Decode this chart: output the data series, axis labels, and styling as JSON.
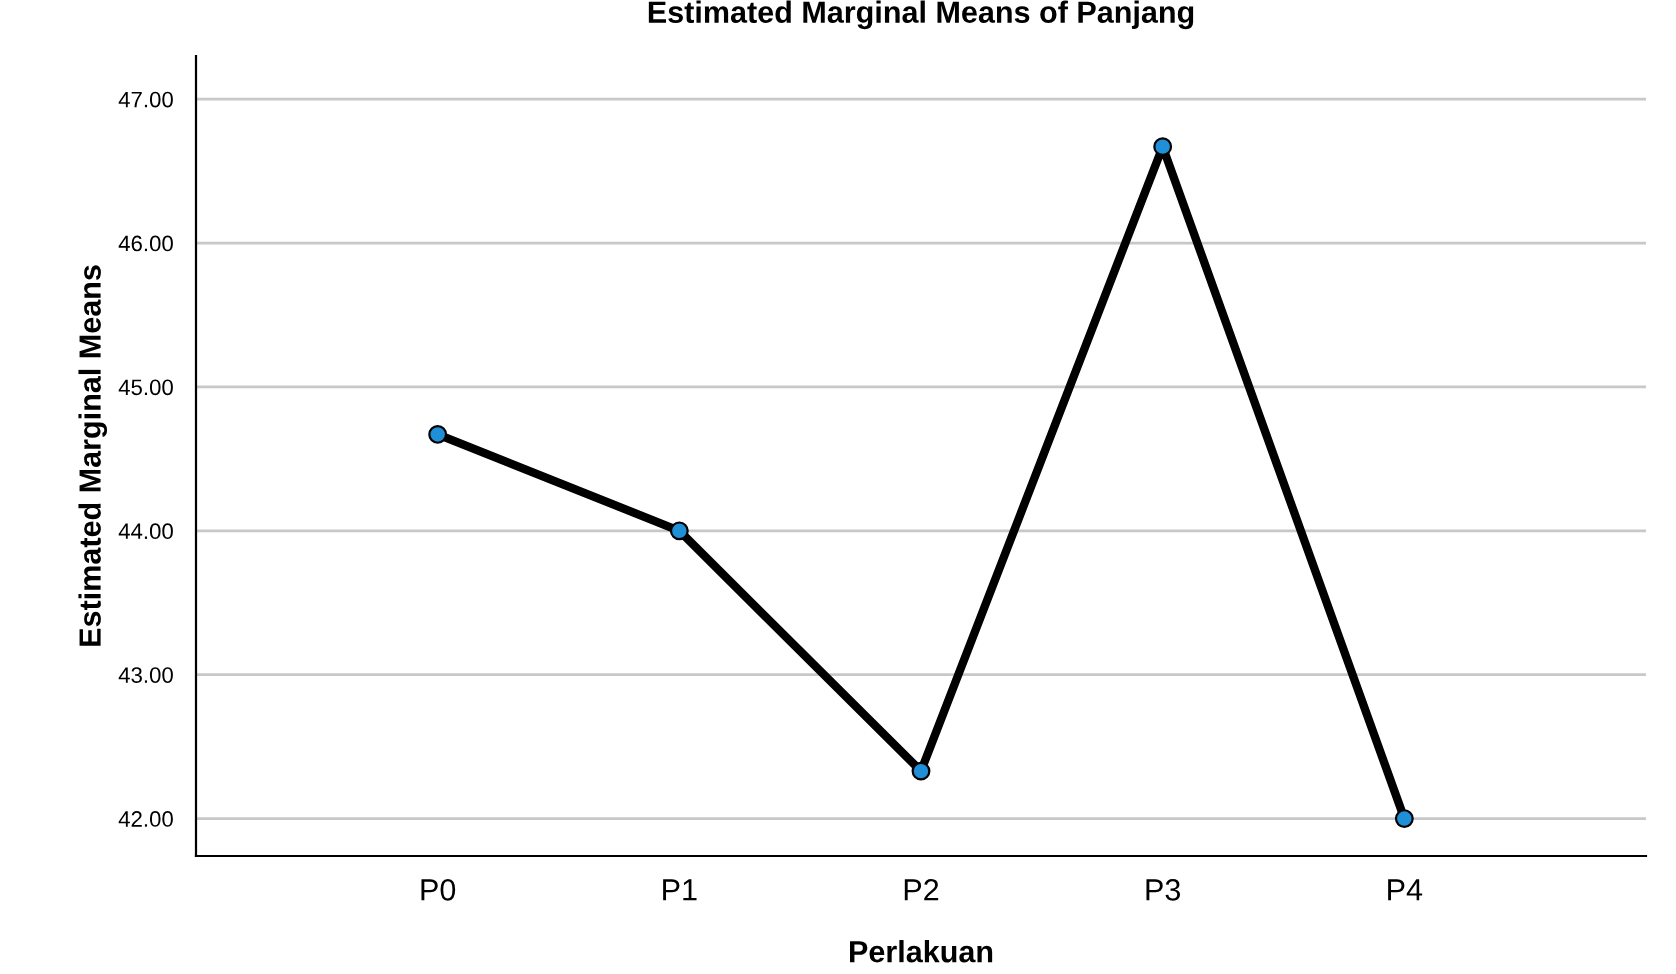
{
  "chart_data": {
    "type": "line",
    "title": "Estimated Marginal Means of Panjang",
    "xlabel": "Perlakuan",
    "ylabel": "Estimated Marginal Means",
    "categories": [
      "P0",
      "P1",
      "P2",
      "P3",
      "P4"
    ],
    "series": [
      {
        "color": "#000000",
        "values": [
          44.67,
          44.0,
          42.33,
          46.67,
          42.0
        ]
      }
    ],
    "ylim": [
      41.74,
      47.3
    ],
    "yticks": [
      {
        "value": 42,
        "label": "42.00"
      },
      {
        "value": 43,
        "label": "43.00"
      },
      {
        "value": 44,
        "label": "44.00"
      },
      {
        "value": 45,
        "label": "45.00"
      },
      {
        "value": 46,
        "label": "46.00"
      },
      {
        "value": 47,
        "label": "47.00"
      }
    ],
    "grid": "y",
    "marker": "circle",
    "line_style": "solid"
  }
}
